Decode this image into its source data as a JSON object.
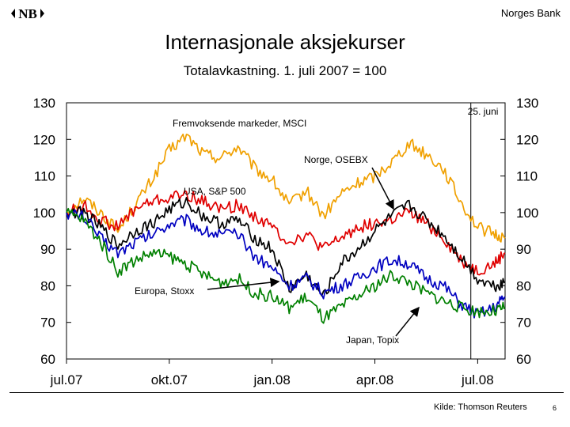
{
  "header": {
    "logo_text": "NB",
    "brand": "Norges Bank",
    "title": "Internasjonale aksjekurser",
    "subtitle": "Totalavkastning. 1. juli 2007 = 100"
  },
  "footer": {
    "source": "Kilde: Thomson Reuters",
    "page_number": "6"
  },
  "chart_data": {
    "type": "line",
    "title": "Internasjonale aksjekurser",
    "subtitle": "Totalavkastning. 1. juli 2007 = 100",
    "xlabel": "",
    "ylabel": "",
    "ylim": [
      60,
      130
    ],
    "xlim": [
      0,
      12.8
    ],
    "yticks": [
      60,
      70,
      80,
      90,
      100,
      110,
      120,
      130
    ],
    "yticks_right": [
      60,
      70,
      80,
      90,
      100,
      110,
      120,
      130
    ],
    "xticks": [
      {
        "value": 0,
        "label": "jul.07"
      },
      {
        "value": 3,
        "label": "okt.07"
      },
      {
        "value": 6,
        "label": "jan.08"
      },
      {
        "value": 9,
        "label": "apr.08"
      },
      {
        "value": 12,
        "label": "jul.08"
      }
    ],
    "vline": {
      "x": 11.8,
      "label": "25. juni"
    },
    "x": [
      0,
      0.5,
      1,
      1.5,
      2,
      2.5,
      3,
      3.5,
      4,
      4.5,
      5,
      5.5,
      6,
      6.5,
      7,
      7.5,
      8,
      8.5,
      9,
      9.5,
      10,
      10.5,
      11,
      11.5,
      12,
      12.5,
      12.8
    ],
    "series": [
      {
        "name": "Fremvoksende markeder, MSCI",
        "color": "#f0a000",
        "values": [
          100,
          104,
          100,
          95,
          102,
          109,
          117,
          121,
          116,
          115,
          118,
          112,
          109,
          102,
          106,
          99,
          105,
          108,
          110,
          114,
          119,
          116,
          112,
          103,
          96,
          94,
          93
        ]
      },
      {
        "name": "USA, S&P 500",
        "color": "#e00000",
        "values": [
          100,
          102,
          98,
          96,
          101,
          103,
          104,
          105,
          103,
          101,
          102,
          99,
          96,
          92,
          94,
          90,
          93,
          96,
          97,
          98,
          100,
          97,
          93,
          87,
          84,
          86,
          89
        ]
      },
      {
        "name": "Norge, OSEBX",
        "color": "#000000",
        "values": [
          100,
          100,
          96,
          91,
          95,
          97,
          101,
          103,
          99,
          97,
          98,
          93,
          90,
          79,
          83,
          77,
          86,
          90,
          95,
          99,
          102,
          98,
          94,
          88,
          82,
          80,
          81
        ]
      },
      {
        "name": "Europa, Stoxx",
        "color": "#0000c0",
        "values": [
          100,
          99,
          93,
          89,
          92,
          94,
          97,
          98,
          95,
          94,
          94,
          88,
          85,
          80,
          82,
          78,
          80,
          82,
          85,
          87,
          86,
          82,
          80,
          75,
          72,
          74,
          77
        ]
      },
      {
        "name": "Japan, Topix",
        "color": "#008000",
        "values": [
          100,
          98,
          92,
          84,
          87,
          89,
          88,
          86,
          83,
          81,
          82,
          78,
          77,
          74,
          77,
          71,
          74,
          77,
          80,
          83,
          81,
          78,
          76,
          74,
          73,
          73,
          74
        ]
      }
    ],
    "annotations": [
      {
        "text": "Fremvoksende markeder, MSCI",
        "series": "Fremvoksende markeder, MSCI"
      },
      {
        "text": "Norge, OSEBX",
        "series": "Norge, OSEBX",
        "arrow": true
      },
      {
        "text": "USA, S&P 500",
        "series": "USA, S&P 500"
      },
      {
        "text": "Europa, Stoxx",
        "series": "Europa, Stoxx",
        "arrow": true
      },
      {
        "text": "Japan, Topix",
        "series": "Japan, Topix",
        "arrow": true
      }
    ]
  }
}
